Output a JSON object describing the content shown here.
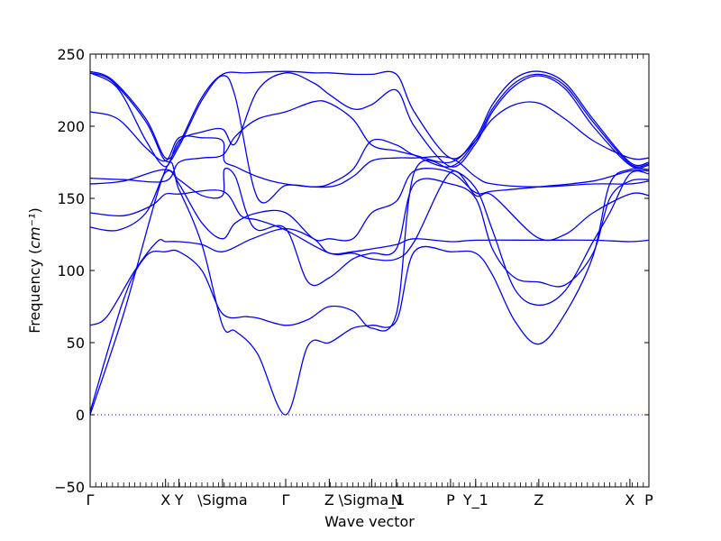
{
  "chart_data": {
    "type": "line",
    "title": "",
    "xlabel": "Wave vector",
    "ylabel": "Frequency",
    "ylabel_unit_tex": "cm⁻¹",
    "ylim": [
      -50,
      250
    ],
    "yticks": [
      -50,
      0,
      50,
      100,
      150,
      200,
      250
    ],
    "xlim": [
      0,
      1
    ],
    "grid": false,
    "legend": "none",
    "line_color": "#0000ff",
    "zero_line": {
      "value": 0,
      "style": "dotted",
      "color": "#0000ff"
    },
    "high_symmetry_points": [
      {
        "label": "Γ",
        "x": 0.0
      },
      {
        "label": "X",
        "x": 0.135
      },
      {
        "label": "Y",
        "x": 0.159
      },
      {
        "label": "\\Sigma",
        "x": 0.237
      },
      {
        "label": "Γ",
        "x": 0.35
      },
      {
        "label": "Z",
        "x": 0.428
      },
      {
        "label": "\\Sigma_1",
        "x": 0.504
      },
      {
        "label": "N",
        "x": 0.548
      },
      {
        "label": "P",
        "x": 0.645
      },
      {
        "label": "Y_1",
        "x": 0.69
      },
      {
        "label": "Z",
        "x": 0.803
      },
      {
        "label": "X",
        "x": 0.966
      },
      {
        "label": "P",
        "x": 1.0
      }
    ],
    "series": [
      {
        "values": [
          [
            0,
            0
          ],
          [
            0.06,
            70
          ],
          [
            0.135,
            170
          ],
          [
            0.159,
            156
          ],
          [
            0.2,
            118
          ],
          [
            0.237,
            62
          ],
          [
            0.26,
            58
          ],
          [
            0.3,
            42
          ],
          [
            0.35,
            0
          ],
          [
            0.39,
            48
          ],
          [
            0.428,
            50
          ],
          [
            0.47,
            60
          ],
          [
            0.504,
            62
          ],
          [
            0.548,
            65
          ],
          [
            0.58,
            113
          ],
          [
            0.645,
            113
          ],
          [
            0.69,
            112
          ],
          [
            0.72,
            97
          ],
          [
            0.76,
            65
          ],
          [
            0.803,
            49
          ],
          [
            0.85,
            70
          ],
          [
            0.9,
            110
          ],
          [
            0.93,
            160
          ],
          [
            0.966,
            170
          ],
          [
            1.0,
            170
          ]
        ]
      },
      {
        "values": [
          [
            0,
            2
          ],
          [
            0.06,
            80
          ],
          [
            0.1,
            110
          ],
          [
            0.135,
            113
          ],
          [
            0.159,
            113
          ],
          [
            0.2,
            100
          ],
          [
            0.237,
            70
          ],
          [
            0.28,
            68
          ],
          [
            0.3,
            67
          ],
          [
            0.35,
            62
          ],
          [
            0.39,
            66
          ],
          [
            0.428,
            75
          ],
          [
            0.47,
            72
          ],
          [
            0.504,
            60
          ],
          [
            0.548,
            70
          ],
          [
            0.58,
            168
          ],
          [
            0.645,
            170
          ],
          [
            0.69,
            157
          ],
          [
            0.72,
            128
          ],
          [
            0.76,
            87
          ],
          [
            0.803,
            76
          ],
          [
            0.85,
            86
          ],
          [
            0.9,
            120
          ],
          [
            0.93,
            140
          ],
          [
            0.966,
            167
          ],
          [
            1.0,
            167
          ]
        ]
      },
      {
        "values": [
          [
            0,
            62
          ],
          [
            0.03,
            68
          ],
          [
            0.08,
            100
          ],
          [
            0.12,
            120
          ],
          [
            0.135,
            120
          ],
          [
            0.159,
            120
          ],
          [
            0.2,
            118
          ],
          [
            0.237,
            113
          ],
          [
            0.29,
            122
          ],
          [
            0.35,
            129
          ],
          [
            0.4,
            122
          ],
          [
            0.428,
            112
          ],
          [
            0.47,
            113
          ],
          [
            0.504,
            115
          ],
          [
            0.548,
            118
          ],
          [
            0.58,
            122
          ],
          [
            0.645,
            120
          ],
          [
            0.69,
            121
          ],
          [
            0.803,
            121
          ],
          [
            0.9,
            121
          ],
          [
            0.966,
            120
          ],
          [
            1.0,
            121
          ]
        ]
      },
      {
        "values": [
          [
            0,
            130
          ],
          [
            0.05,
            128
          ],
          [
            0.1,
            140
          ],
          [
            0.135,
            168
          ],
          [
            0.159,
            163
          ],
          [
            0.2,
            152
          ],
          [
            0.237,
            152
          ],
          [
            0.24,
            170
          ],
          [
            0.26,
            165
          ],
          [
            0.28,
            140
          ],
          [
            0.3,
            128
          ],
          [
            0.35,
            129
          ],
          [
            0.39,
            92
          ],
          [
            0.428,
            95
          ],
          [
            0.47,
            108
          ],
          [
            0.504,
            112
          ],
          [
            0.548,
            115
          ],
          [
            0.58,
            160
          ],
          [
            0.645,
            160
          ],
          [
            0.69,
            150
          ],
          [
            0.72,
            115
          ],
          [
            0.76,
            95
          ],
          [
            0.803,
            92
          ],
          [
            0.85,
            90
          ],
          [
            0.9,
            112
          ],
          [
            0.93,
            150
          ],
          [
            0.966,
            162
          ],
          [
            1.0,
            163
          ]
        ]
      },
      {
        "values": [
          [
            0,
            140
          ],
          [
            0.06,
            138
          ],
          [
            0.11,
            145
          ],
          [
            0.135,
            153
          ],
          [
            0.159,
            153
          ],
          [
            0.237,
            155
          ],
          [
            0.27,
            138
          ],
          [
            0.3,
            135
          ],
          [
            0.35,
            128
          ],
          [
            0.428,
            112
          ],
          [
            0.47,
            112
          ],
          [
            0.504,
            108
          ],
          [
            0.548,
            108
          ],
          [
            0.58,
            120
          ],
          [
            0.645,
            168
          ],
          [
            0.69,
            152
          ],
          [
            0.72,
            152
          ],
          [
            0.8,
            123
          ],
          [
            0.85,
            125
          ],
          [
            0.9,
            140
          ],
          [
            0.966,
            153
          ],
          [
            1.0,
            152
          ]
        ]
      },
      {
        "values": [
          [
            0,
            160
          ],
          [
            0.06,
            162
          ],
          [
            0.135,
            170
          ],
          [
            0.159,
            160
          ],
          [
            0.2,
            133
          ],
          [
            0.237,
            122
          ],
          [
            0.26,
            133
          ],
          [
            0.3,
            140
          ],
          [
            0.35,
            140
          ],
          [
            0.4,
            122
          ],
          [
            0.428,
            122
          ],
          [
            0.47,
            122
          ],
          [
            0.504,
            140
          ],
          [
            0.548,
            148
          ],
          [
            0.58,
            169
          ],
          [
            0.645,
            168
          ],
          [
            0.69,
            154
          ],
          [
            0.72,
            155
          ],
          [
            0.803,
            158
          ],
          [
            0.9,
            162
          ],
          [
            0.966,
            169
          ],
          [
            1.0,
            169
          ]
        ]
      },
      {
        "values": [
          [
            0,
            164
          ],
          [
            0.06,
            163
          ],
          [
            0.135,
            162
          ],
          [
            0.159,
            175
          ],
          [
            0.2,
            178
          ],
          [
            0.237,
            180
          ],
          [
            0.26,
            193
          ],
          [
            0.3,
            205
          ],
          [
            0.35,
            210
          ],
          [
            0.4,
            217
          ],
          [
            0.428,
            216
          ],
          [
            0.47,
            205
          ],
          [
            0.504,
            187
          ],
          [
            0.548,
            183
          ],
          [
            0.58,
            180
          ],
          [
            0.645,
            175
          ],
          [
            0.69,
            190
          ],
          [
            0.72,
            205
          ],
          [
            0.76,
            215
          ],
          [
            0.803,
            216
          ],
          [
            0.85,
            205
          ],
          [
            0.9,
            190
          ],
          [
            0.966,
            178
          ],
          [
            1.0,
            178
          ]
        ]
      },
      {
        "values": [
          [
            0,
            210
          ],
          [
            0.05,
            205
          ],
          [
            0.1,
            185
          ],
          [
            0.135,
            176
          ],
          [
            0.159,
            192
          ],
          [
            0.2,
            192
          ],
          [
            0.237,
            190
          ],
          [
            0.24,
            176
          ],
          [
            0.26,
            172
          ],
          [
            0.3,
            165
          ],
          [
            0.35,
            160
          ],
          [
            0.428,
            158
          ],
          [
            0.47,
            165
          ],
          [
            0.504,
            176
          ],
          [
            0.548,
            178
          ],
          [
            0.58,
            178
          ],
          [
            0.645,
            178
          ],
          [
            0.69,
            165
          ],
          [
            0.72,
            160
          ],
          [
            0.803,
            158
          ],
          [
            0.9,
            160
          ],
          [
            0.966,
            160
          ],
          [
            1.0,
            162
          ]
        ]
      },
      {
        "values": [
          [
            0,
            238
          ],
          [
            0.04,
            232
          ],
          [
            0.1,
            205
          ],
          [
            0.135,
            178
          ],
          [
            0.159,
            188
          ],
          [
            0.2,
            220
          ],
          [
            0.237,
            236
          ],
          [
            0.28,
            237
          ],
          [
            0.35,
            238
          ],
          [
            0.4,
            237
          ],
          [
            0.428,
            237
          ],
          [
            0.47,
            236
          ],
          [
            0.504,
            236
          ],
          [
            0.548,
            236
          ],
          [
            0.58,
            210
          ],
          [
            0.645,
            178
          ],
          [
            0.69,
            192
          ],
          [
            0.72,
            215
          ],
          [
            0.76,
            233
          ],
          [
            0.803,
            238
          ],
          [
            0.85,
            230
          ],
          [
            0.9,
            205
          ],
          [
            0.966,
            175
          ],
          [
            1.0,
            175
          ]
        ]
      },
      {
        "values": [
          [
            0,
            237
          ],
          [
            0.04,
            231
          ],
          [
            0.1,
            203
          ],
          [
            0.135,
            176
          ],
          [
            0.159,
            186
          ],
          [
            0.2,
            218
          ],
          [
            0.237,
            235
          ],
          [
            0.26,
            220
          ],
          [
            0.3,
            150
          ],
          [
            0.35,
            159
          ],
          [
            0.4,
            158
          ],
          [
            0.428,
            160
          ],
          [
            0.47,
            170
          ],
          [
            0.504,
            190
          ],
          [
            0.548,
            187
          ],
          [
            0.58,
            180
          ],
          [
            0.645,
            172
          ],
          [
            0.69,
            190
          ],
          [
            0.72,
            212
          ],
          [
            0.76,
            230
          ],
          [
            0.803,
            236
          ],
          [
            0.85,
            228
          ],
          [
            0.9,
            203
          ],
          [
            0.966,
            174
          ],
          [
            1.0,
            174
          ]
        ]
      },
      {
        "values": [
          [
            0,
            237
          ],
          [
            0.05,
            226
          ],
          [
            0.1,
            190
          ],
          [
            0.135,
            172
          ],
          [
            0.159,
            190
          ],
          [
            0.2,
            196
          ],
          [
            0.237,
            198
          ],
          [
            0.26,
            188
          ],
          [
            0.3,
            225
          ],
          [
            0.35,
            237
          ],
          [
            0.4,
            230
          ],
          [
            0.428,
            222
          ],
          [
            0.47,
            212
          ],
          [
            0.504,
            215
          ],
          [
            0.548,
            225
          ],
          [
            0.58,
            200
          ],
          [
            0.645,
            172
          ],
          [
            0.69,
            188
          ],
          [
            0.72,
            210
          ],
          [
            0.76,
            228
          ],
          [
            0.803,
            235
          ],
          [
            0.85,
            226
          ],
          [
            0.9,
            200
          ],
          [
            0.966,
            173
          ],
          [
            1.0,
            173
          ]
        ]
      }
    ]
  }
}
